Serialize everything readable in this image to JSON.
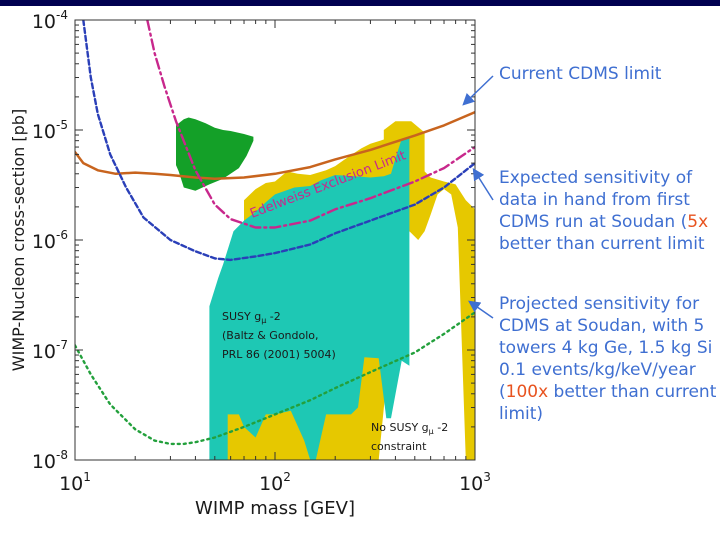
{
  "chart_data": {
    "type": "line",
    "x_scale": "log",
    "y_scale": "log",
    "xlim": [
      10,
      1000
    ],
    "ylim": [
      1e-08,
      0.0001
    ],
    "xlabel": "WIMP mass [GEV]",
    "ylabel": "WIMP-Nucleon cross-section [pb]",
    "x_ticks": [
      {
        "value": 10,
        "base": "10",
        "exp": "1"
      },
      {
        "value": 100,
        "base": "10",
        "exp": "2"
      },
      {
        "value": 1000,
        "base": "10",
        "exp": "3"
      }
    ],
    "y_ticks": [
      {
        "value": 1e-08,
        "base": "10",
        "exp": "-8"
      },
      {
        "value": 1e-07,
        "base": "10",
        "exp": "-7"
      },
      {
        "value": 1e-06,
        "base": "10",
        "exp": "-6"
      },
      {
        "value": 1e-05,
        "base": "10",
        "exp": "-5"
      },
      {
        "value": 0.0001,
        "base": "10",
        "exp": "-4"
      }
    ],
    "series": [
      {
        "name": "Current CDMS limit",
        "style": "solid",
        "color": "#c8641e",
        "x": [
          10,
          11,
          13,
          16,
          20,
          25,
          30,
          40,
          50,
          70,
          100,
          150,
          200,
          300,
          500,
          700,
          1000
        ],
        "y": [
          6.3e-06,
          5e-06,
          4.3e-06,
          4e-06,
          4.1e-06,
          4e-06,
          3.9e-06,
          3.7e-06,
          3.6e-06,
          3.7e-06,
          4e-06,
          4.6e-06,
          5.4e-06,
          6.6e-06,
          8.9e-06,
          1.1e-05,
          1.45e-05
        ]
      },
      {
        "name": "Expected sensitivity of data in hand from first CDMS run at Soudan",
        "style": "dashed",
        "color": "#2a3fb8",
        "x": [
          11,
          12,
          13,
          15,
          18,
          22,
          30,
          40,
          50,
          60,
          80,
          100,
          150,
          200,
          300,
          500,
          700,
          1000
        ],
        "y": [
          0.0001,
          3e-05,
          1.4e-05,
          6e-06,
          3e-06,
          1.6e-06,
          1e-06,
          7.9e-07,
          6.8e-07,
          6.6e-07,
          7.1e-07,
          7.6e-07,
          9.1e-07,
          1.15e-06,
          1.5e-06,
          2.1e-06,
          3e-06,
          5e-06
        ]
      },
      {
        "name": "Edelweiss Exclusion Limit",
        "style": "dashdot",
        "color": "#c8288c",
        "x": [
          23,
          25,
          28,
          32,
          40,
          50,
          60,
          80,
          100,
          150,
          200,
          300,
          500,
          700,
          1000
        ],
        "y": [
          0.0001,
          5e-05,
          2.5e-05,
          1.2e-05,
          4.3e-06,
          2.1e-06,
          1.55e-06,
          1.3e-06,
          1.3e-06,
          1.5e-06,
          1.9e-06,
          2.4e-06,
          3.4e-06,
          4.5e-06,
          7e-06
        ]
      },
      {
        "name": "Projected sensitivity for CDMS at Soudan",
        "style": "dotted",
        "color": "#23a03c",
        "x": [
          10,
          12,
          15,
          20,
          25,
          30,
          35,
          40,
          50,
          70,
          100,
          150,
          200,
          300,
          500,
          700,
          1000
        ],
        "y": [
          1.1e-07,
          6e-08,
          3.2e-08,
          1.9e-08,
          1.5e-08,
          1.4e-08,
          1.4e-08,
          1.45e-08,
          1.6e-08,
          2e-08,
          2.6e-08,
          3.5e-08,
          4.5e-08,
          6.3e-08,
          9.5e-08,
          1.4e-07,
          2.2e-07
        ]
      }
    ],
    "regions": [
      {
        "name": "No SUSY constraint region",
        "color": "#e6c800",
        "x": [
          50,
          50,
          58,
          58,
          65,
          70,
          70,
          80,
          90,
          100,
          115,
          130,
          150,
          180,
          200,
          220,
          250,
          270,
          300,
          350,
          350,
          400,
          480,
          560,
          560,
          600,
          700,
          800,
          900,
          1000,
          1000,
          900,
          820,
          760,
          700,
          650,
          600,
          560,
          520,
          470,
          400,
          330,
          280,
          220,
          180,
          130,
          100,
          90,
          80,
          62,
          62,
          50
        ],
        "y": [
          1e-08,
          2.6e-08,
          2.6e-08,
          1.2e-07,
          3e-07,
          8e-07,
          2.3e-06,
          2.9e-06,
          3.3e-06,
          3.4e-06,
          4.2e-06,
          4e-06,
          3.9e-06,
          4.3e-06,
          4.7e-06,
          5.3e-06,
          6.2e-06,
          6.8e-06,
          7.5e-06,
          8.2e-06,
          1e-05,
          1.2e-05,
          1.2e-05,
          9.5e-06,
          4.2e-06,
          3.7e-06,
          3.4e-06,
          3.2e-06,
          2.3e-06,
          1.9e-06,
          1e-08,
          1e-08,
          1.3e-06,
          2.6e-06,
          2.9e-06,
          2.6e-06,
          1.7e-06,
          1.2e-06,
          1e-06,
          1.2e-06,
          3.5e-07,
          1e-08,
          1e-08,
          1e-08,
          1e-08,
          1e-08,
          1e-08,
          1e-08,
          1e-08,
          1e-08,
          1e-08,
          1e-08
        ]
      },
      {
        "name": "SUSY g-2 allowed region",
        "color": "#1ec8b4",
        "x": [
          47,
          47,
          52,
          55,
          62,
          70,
          80,
          90,
          100,
          125,
          150,
          170,
          200,
          250,
          300,
          350,
          380,
          400,
          430,
          470,
          470,
          430,
          380,
          360,
          330,
          280,
          260,
          240,
          200,
          180,
          160,
          150,
          140,
          120,
          100,
          90,
          80,
          70,
          66,
          62,
          58,
          58,
          56,
          55,
          52,
          50,
          47
        ],
        "y": [
          1.6e-07,
          2.5e-07,
          4.5e-07,
          6e-07,
          1.2e-06,
          1.5e-06,
          1.8e-06,
          2.2e-06,
          2.6e-06,
          3e-06,
          3.1e-06,
          3.5e-06,
          3.9e-06,
          3.8e-06,
          3.7e-06,
          3.8e-06,
          4e-06,
          5.5e-06,
          8.3e-06,
          8.6e-06,
          7.2e-08,
          8e-08,
          2.4e-08,
          2.4e-08,
          8.4e-08,
          8.6e-08,
          3e-08,
          2.6e-08,
          2.6e-08,
          2.6e-08,
          1e-08,
          1e-08,
          1.5e-08,
          2.8e-08,
          2.6e-08,
          2.6e-08,
          1.6e-08,
          2e-08,
          2.6e-08,
          2.6e-08,
          2.6e-08,
          1e-08,
          1e-08,
          1e-08,
          1e-08,
          1e-08,
          1e-08
        ]
      },
      {
        "name": "Green region",
        "color": "#14a028",
        "x": [
          32,
          32,
          33,
          35,
          40,
          47,
          55,
          66,
          72,
          75,
          78,
          78,
          70,
          60,
          55,
          50,
          45,
          40,
          37,
          35
        ],
        "y": [
          1.1e-05,
          4.8e-06,
          4.2e-06,
          3e-06,
          2.8e-06,
          3.2e-06,
          3.6e-06,
          4.5e-06,
          5.8e-06,
          6.8e-06,
          8e-06,
          8.7e-06,
          9.2e-06,
          9.8e-06,
          1e-05,
          1.05e-05,
          1.15e-05,
          1.25e-05,
          1.3e-05,
          1.25e-05
        ]
      }
    ],
    "annotations": {
      "edelweiss": "Edelweiss Exclusion Limit",
      "susy_line1": "SUSY g",
      "susy_sub": "μ",
      "susy_line1_end": " -2",
      "susy_line2": "(Baltz & Gondolo,",
      "susy_line3": "PRL 86 (2001) 5004)",
      "nosusy_line1": "No SUSY g",
      "nosusy_sub": "μ",
      "nosusy_line1_end": " -2",
      "nosusy_line2": "constraint"
    }
  },
  "side_notes": {
    "current": "Current CDMS limit",
    "expected_line1": "Expected sensitivity of",
    "expected_line2": "data in hand from first",
    "expected_line3_pre": "CDMS run at Soudan (",
    "expected_line3_hl": "5x",
    "expected_line4": "better than current limit",
    "projected_line1": "Projected sensitivity for",
    "projected_line2": "CDMS at Soudan, with 5",
    "projected_line3": "towers 4 kg Ge, 1.5 kg Si",
    "projected_line4": "0.1 events/kg/keV/year",
    "projected_line5_pre": "(",
    "projected_line5_hl": "100x",
    "projected_line5_post": " better than current",
    "projected_line6": "limit)"
  },
  "colors": {
    "frame_bar": "#000050",
    "text_blue": "#3f6fd1",
    "text_orange": "#e8531f",
    "arrow": "#3f6fd1"
  }
}
